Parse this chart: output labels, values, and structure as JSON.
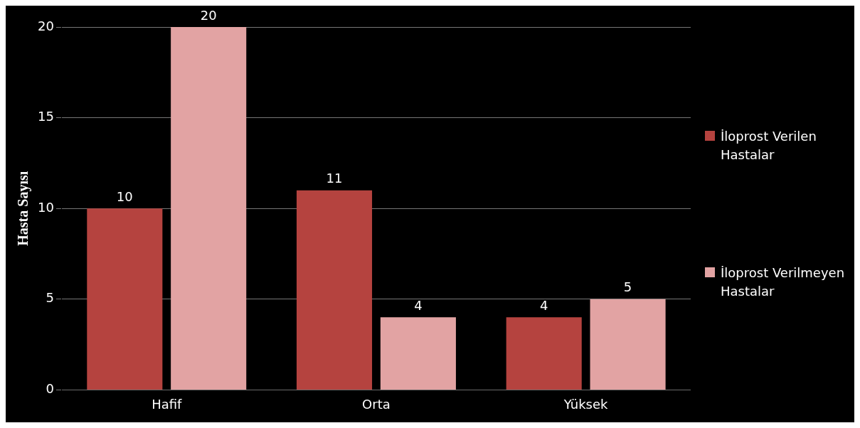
{
  "chart_data": {
    "type": "bar",
    "ylabel": "Hasta Sayısı",
    "categories": [
      "Hafif",
      "Orta",
      "Yüksek"
    ],
    "series": [
      {
        "name": "İloprost Verilen Hastalar",
        "color": "#b5433f",
        "values": [
          10,
          11,
          4
        ]
      },
      {
        "name": "İloprost Verilmeyen Hastalar",
        "color": "#e2a3a3",
        "values": [
          20,
          4,
          5
        ]
      }
    ],
    "ylim": [
      0,
      20
    ],
    "yticks": [
      0,
      5,
      10,
      15,
      20
    ],
    "grid": "y",
    "legend": "right",
    "data_labels": true
  }
}
